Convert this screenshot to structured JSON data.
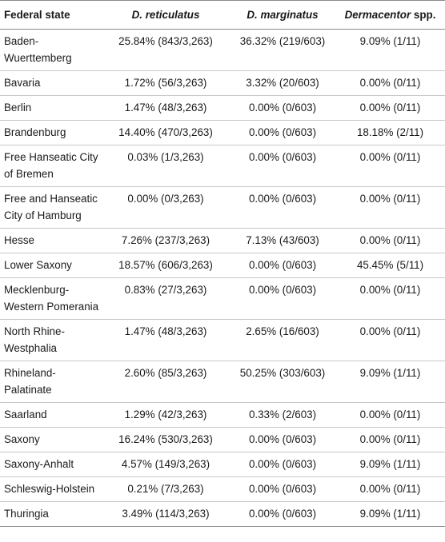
{
  "table": {
    "headers": [
      "Federal state",
      "D. reticulatus",
      "D. marginatus",
      "Dermacentor spp."
    ],
    "rows": [
      {
        "state": "Baden-Wuerttemberg",
        "d_reticulatus": "25.84% (843/3,263)",
        "d_marginatus": "36.32% (219/603)",
        "dermacentor_spp": "9.09% (1/11)"
      },
      {
        "state": "Bavaria",
        "d_reticulatus": "1.72% (56/3,263)",
        "d_marginatus": "3.32% (20/603)",
        "dermacentor_spp": "0.00% (0/11)"
      },
      {
        "state": "Berlin",
        "d_reticulatus": "1.47% (48/3,263)",
        "d_marginatus": "0.00% (0/603)",
        "dermacentor_spp": "0.00% (0/11)"
      },
      {
        "state": "Brandenburg",
        "d_reticulatus": "14.40% (470/3,263)",
        "d_marginatus": "0.00% (0/603)",
        "dermacentor_spp": "18.18% (2/11)"
      },
      {
        "state": "Free Hanseatic City of Bremen",
        "d_reticulatus": "0.03% (1/3,263)",
        "d_marginatus": "0.00% (0/603)",
        "dermacentor_spp": "0.00% (0/11)"
      },
      {
        "state": "Free and Hanseatic City of Hamburg",
        "d_reticulatus": "0.00% (0/3,263)",
        "d_marginatus": "0.00% (0/603)",
        "dermacentor_spp": "0.00% (0/11)"
      },
      {
        "state": "Hesse",
        "d_reticulatus": "7.26% (237/3,263)",
        "d_marginatus": "7.13% (43/603)",
        "dermacentor_spp": "0.00% (0/11)"
      },
      {
        "state": "Lower Saxony",
        "d_reticulatus": "18.57% (606/3,263)",
        "d_marginatus": "0.00% (0/603)",
        "dermacentor_spp": "45.45% (5/11)"
      },
      {
        "state": "Mecklenburg-Western Pomerania",
        "d_reticulatus": "0.83% (27/3,263)",
        "d_marginatus": "0.00% (0/603)",
        "dermacentor_spp": "0.00% (0/11)"
      },
      {
        "state": "North Rhine-Westphalia",
        "d_reticulatus": "1.47% (48/3,263)",
        "d_marginatus": "2.65% (16/603)",
        "dermacentor_spp": "0.00% (0/11)"
      },
      {
        "state": "Rhineland-Palatinate",
        "d_reticulatus": "2.60% (85/3,263)",
        "d_marginatus": "50.25% (303/603)",
        "dermacentor_spp": "9.09% (1/11)"
      },
      {
        "state": "Saarland",
        "d_reticulatus": "1.29% (42/3,263)",
        "d_marginatus": "0.33% (2/603)",
        "dermacentor_spp": "0.00% (0/11)"
      },
      {
        "state": "Saxony",
        "d_reticulatus": "16.24% (530/3,263)",
        "d_marginatus": "0.00% (0/603)",
        "dermacentor_spp": "0.00% (0/11)"
      },
      {
        "state": "Saxony-Anhalt",
        "d_reticulatus": "4.57% (149/3,263)",
        "d_marginatus": "0.00% (0/603)",
        "dermacentor_spp": "9.09% (1/11)"
      },
      {
        "state": "Schleswig-Holstein",
        "d_reticulatus": "0.21% (7/3,263)",
        "d_marginatus": "0.00% (0/603)",
        "dermacentor_spp": "0.00% (0/11)"
      },
      {
        "state": "Thuringia",
        "d_reticulatus": "3.49% (114/3,263)",
        "d_marginatus": "0.00% (0/603)",
        "dermacentor_spp": "9.09% (1/11)"
      }
    ]
  }
}
